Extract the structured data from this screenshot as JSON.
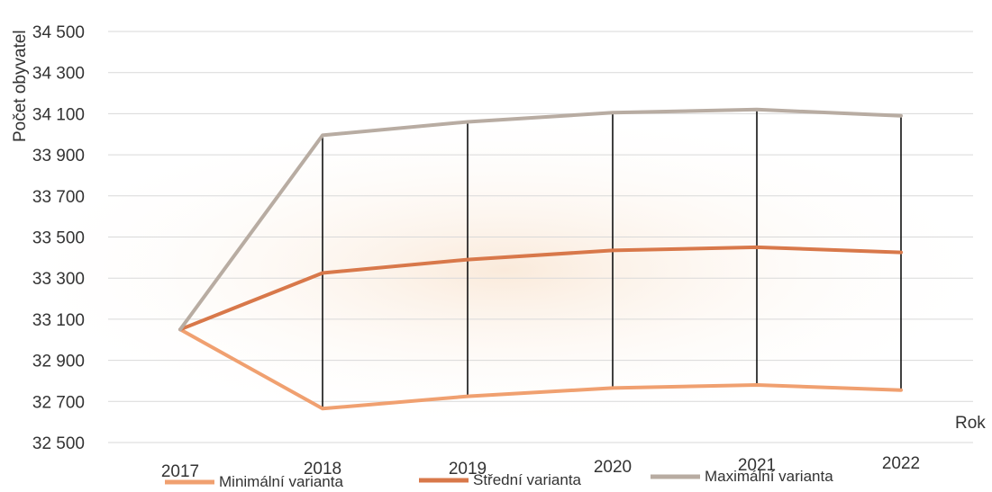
{
  "chart_data": {
    "type": "line",
    "categories": [
      "2017",
      "2018",
      "2019",
      "2020",
      "2021",
      "2022"
    ],
    "series": [
      {
        "name": "Minimální varianta",
        "color": "#f0a070",
        "values": [
          33050,
          32665,
          32725,
          32765,
          32780,
          32755
        ]
      },
      {
        "name": "Střední varianta",
        "color": "#d8784a",
        "values": [
          33050,
          33325,
          33390,
          33435,
          33450,
          33425
        ]
      },
      {
        "name": "Maximální varianta",
        "color": "#b8aca2",
        "values": [
          33050,
          33995,
          34060,
          34105,
          34120,
          34090
        ]
      }
    ],
    "ylim": [
      32500,
      34500
    ],
    "yticks": [
      32500,
      32700,
      32900,
      33100,
      33300,
      33500,
      33700,
      33900,
      34100,
      34300,
      34500
    ],
    "ytick_labels": [
      "32 500",
      "32 700",
      "32 900",
      "33 100",
      "33 300",
      "33 500",
      "33 700",
      "33 900",
      "34 100",
      "34 300",
      "34 500"
    ],
    "ylabel": "Počet obyvatel",
    "xlabel": "Rok",
    "grid": true,
    "legend_position": "bottom",
    "drop_lines": true,
    "drop_line_color": "#111111",
    "grid_color": "#d9d9d9"
  }
}
